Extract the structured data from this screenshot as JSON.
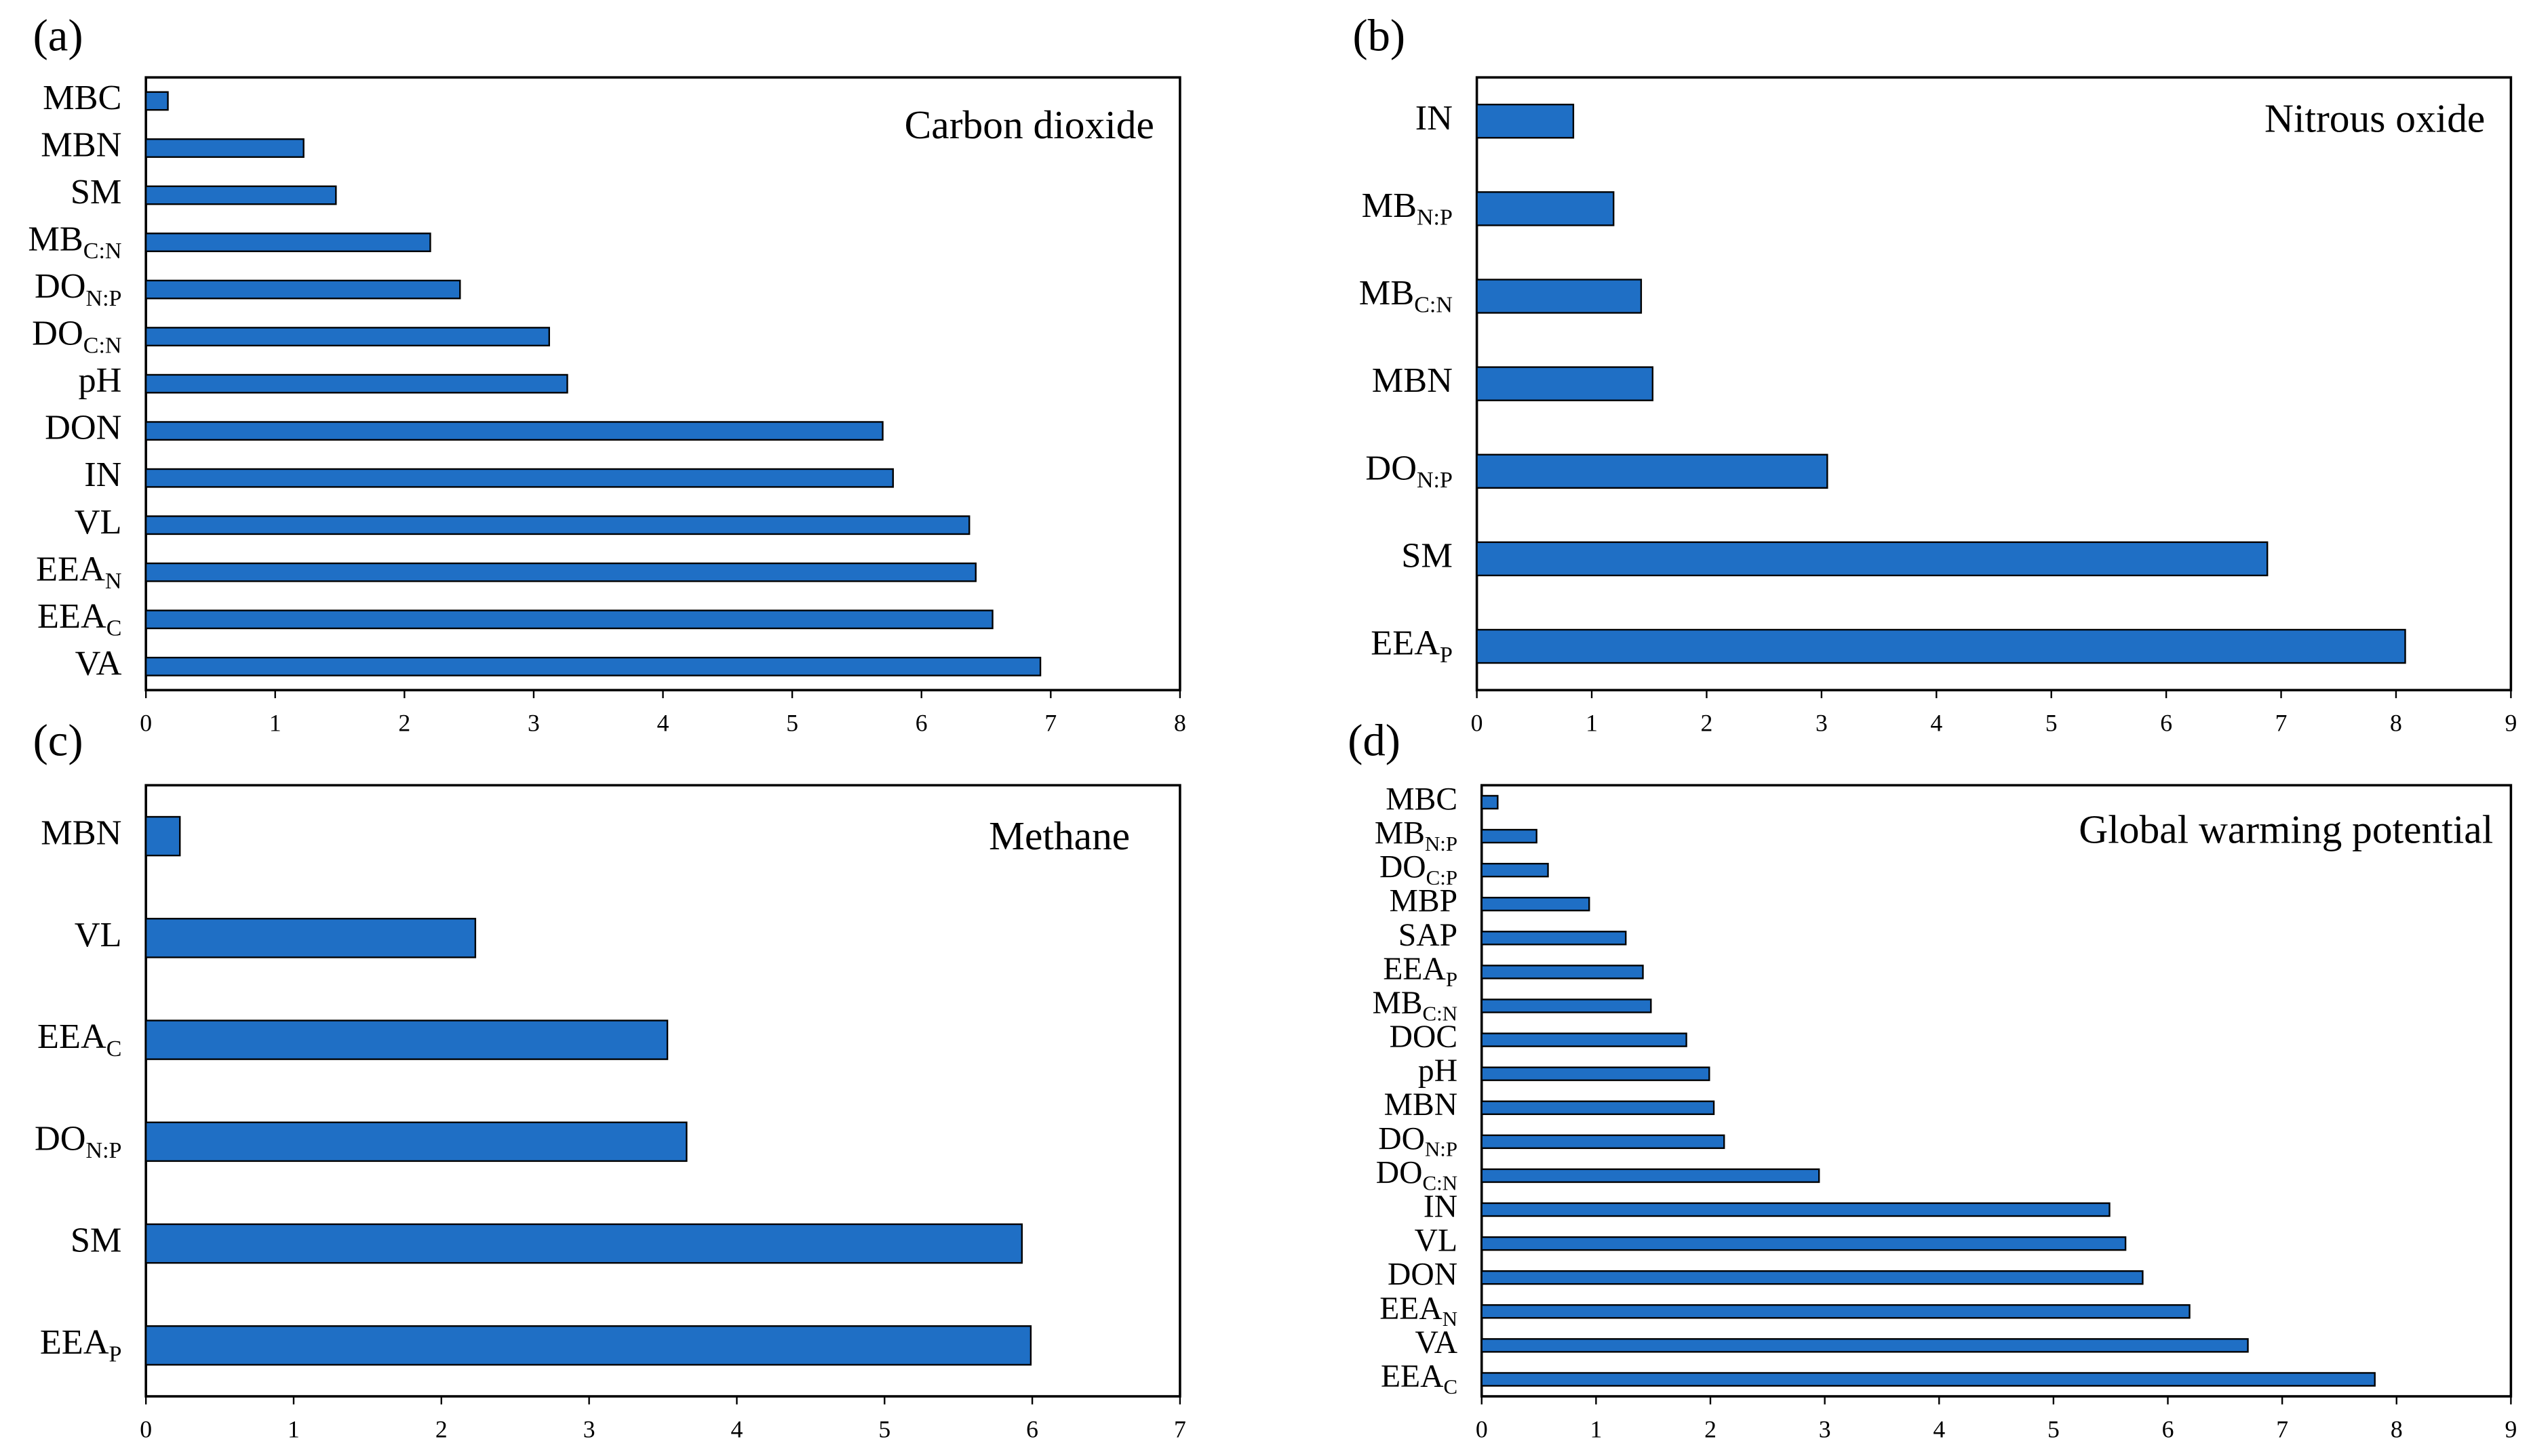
{
  "chart_data": [
    {
      "type": "bar",
      "orientation": "horizontal",
      "panel_label": "(a)",
      "title": "Carbon dioxide",
      "color": "#1f6fc5",
      "categories": [
        "MBC",
        "MBN",
        "SM",
        {
          "text": "MB",
          "subscript": "C:N"
        },
        {
          "text": "DO",
          "subscript": "N:P"
        },
        {
          "text": "DO",
          "subscript": "C:N"
        },
        "pH",
        "DON",
        "IN",
        "VL",
        {
          "text": "EEA",
          "subscript": "N"
        },
        {
          "text": "EEA",
          "subscript": "C"
        },
        "VA"
      ],
      "values": [
        0.17,
        1.22,
        1.47,
        2.2,
        2.43,
        3.12,
        3.26,
        5.7,
        5.78,
        6.37,
        6.42,
        6.55,
        6.92
      ],
      "xlim": [
        0,
        8
      ],
      "xticks": [
        0,
        1,
        2,
        3,
        4,
        5,
        6,
        7,
        8
      ]
    },
    {
      "type": "bar",
      "orientation": "horizontal",
      "panel_label": "(b)",
      "title": "Nitrous oxide",
      "color": "#1f6fc5",
      "categories": [
        "IN",
        {
          "text": "MB",
          "subscript": "N:P"
        },
        {
          "text": "MB",
          "subscript": "C:N"
        },
        "MBN",
        {
          "text": "DO",
          "subscript": "N:P"
        },
        "SM",
        {
          "text": "EEA",
          "subscript": "P"
        }
      ],
      "values": [
        0.84,
        1.19,
        1.43,
        1.53,
        3.05,
        6.88,
        8.08
      ],
      "xlim": [
        0,
        9
      ],
      "xticks": [
        0,
        1,
        2,
        3,
        4,
        5,
        6,
        7,
        8,
        9
      ]
    },
    {
      "type": "bar",
      "orientation": "horizontal",
      "panel_label": "(c)",
      "title": "Methane",
      "color": "#1f6fc5",
      "categories": [
        "MBN",
        "VL",
        {
          "text": "EEA",
          "subscript": "C"
        },
        {
          "text": "DO",
          "subscript": "N:P"
        },
        "SM",
        {
          "text": "EEA",
          "subscript": "P"
        }
      ],
      "values": [
        0.23,
        2.23,
        3.53,
        3.66,
        5.93,
        5.99
      ],
      "xlim": [
        0,
        7
      ],
      "xticks": [
        0,
        1,
        2,
        3,
        4,
        5,
        6,
        7
      ]
    },
    {
      "type": "bar",
      "orientation": "horizontal",
      "panel_label": "(d)",
      "title": "Global warming potential",
      "color": "#1f6fc5",
      "categories": [
        "MBC",
        {
          "text": "MB",
          "subscript": "N:P"
        },
        {
          "text": "DO",
          "subscript": "C:P"
        },
        "MBP",
        "SAP",
        {
          "text": "EEA",
          "subscript": "P"
        },
        {
          "text": "MB",
          "subscript": "C:N"
        },
        "DOC",
        "pH",
        "MBN",
        {
          "text": "DO",
          "subscript": "N:P"
        },
        {
          "text": "DO",
          "subscript": "C:N"
        },
        "IN",
        "VL",
        "DON",
        {
          "text": "EEA",
          "subscript": "N"
        },
        "VA",
        {
          "text": "EEA",
          "subscript": "C"
        }
      ],
      "values": [
        0.14,
        0.48,
        0.58,
        0.94,
        1.26,
        1.41,
        1.48,
        1.79,
        1.99,
        2.03,
        2.12,
        2.95,
        5.49,
        5.63,
        5.78,
        6.19,
        6.7,
        7.81
      ],
      "xlim": [
        0,
        9
      ],
      "xticks": [
        0,
        1,
        2,
        3,
        4,
        5,
        6,
        7,
        8,
        9
      ]
    }
  ]
}
